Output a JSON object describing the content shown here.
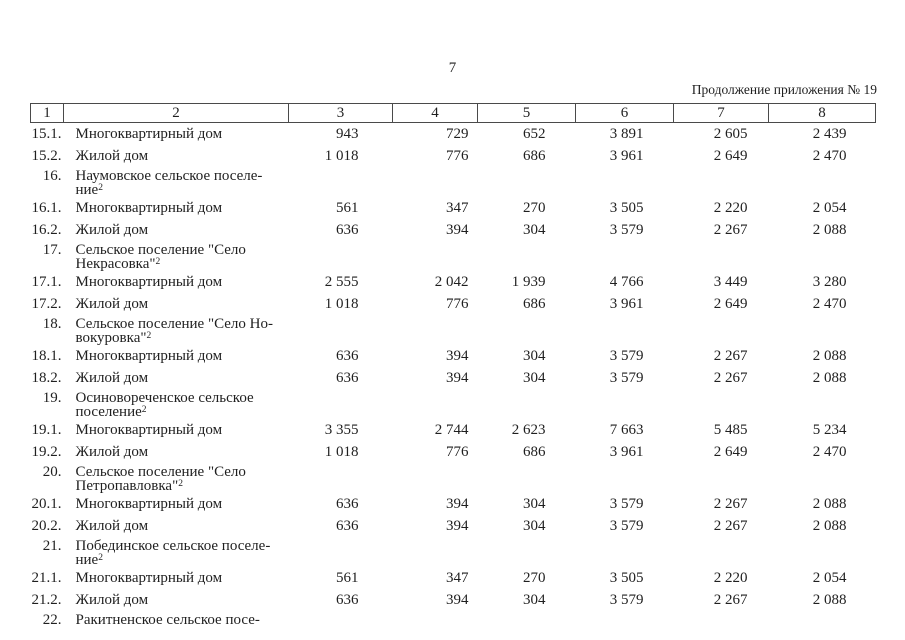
{
  "page": {
    "number": "7",
    "continuation": "Продолжение приложения № 19"
  },
  "table": {
    "header": [
      "1",
      "2",
      "3",
      "4",
      "5",
      "6",
      "7",
      "8"
    ],
    "rows": [
      {
        "type": "item",
        "num": "15.1.",
        "name": "Многоквартирный дом",
        "values": [
          "943",
          "729",
          "652",
          "3 891",
          "2 605",
          "2 439"
        ]
      },
      {
        "type": "item",
        "num": "15.2.",
        "name": "Жилой дом",
        "values": [
          "1 018",
          "776",
          "686",
          "3 961",
          "2 649",
          "2 470"
        ]
      },
      {
        "type": "section",
        "num": "16.",
        "line1": "Наумовское сельское поселе-",
        "line2": "ние",
        "sup": "2",
        "values": [
          "",
          "",
          "",
          "",
          "",
          ""
        ]
      },
      {
        "type": "item",
        "num": "16.1.",
        "name": "Многоквартирный дом",
        "values": [
          "561",
          "347",
          "270",
          "3 505",
          "2 220",
          "2 054"
        ]
      },
      {
        "type": "item",
        "num": "16.2.",
        "name": "Жилой дом",
        "values": [
          "636",
          "394",
          "304",
          "3 579",
          "2 267",
          "2 088"
        ]
      },
      {
        "type": "section",
        "num": "17.",
        "line1": "Сельское поселение \"Село",
        "line2": "Некрасовка\"",
        "sup": "2",
        "values": [
          "",
          "",
          "",
          "",
          "",
          ""
        ]
      },
      {
        "type": "item",
        "num": "17.1.",
        "name": "Многоквартирный дом",
        "values": [
          "2 555",
          "2 042",
          "1 939",
          "4 766",
          "3 449",
          "3 280"
        ]
      },
      {
        "type": "item",
        "num": "17.2.",
        "name": "Жилой дом",
        "values": [
          "1 018",
          "776",
          "686",
          "3 961",
          "2 649",
          "2 470"
        ]
      },
      {
        "type": "section",
        "num": "18.",
        "line1": "Сельское поселение \"Село Но-",
        "line2": "вокуровка\"",
        "sup": "2",
        "values": [
          "",
          "",
          "",
          "",
          "",
          ""
        ]
      },
      {
        "type": "item",
        "num": "18.1.",
        "name": "Многоквартирный дом",
        "values": [
          "636",
          "394",
          "304",
          "3 579",
          "2 267",
          "2 088"
        ]
      },
      {
        "type": "item",
        "num": "18.2.",
        "name": "Жилой дом",
        "values": [
          "636",
          "394",
          "304",
          "3 579",
          "2 267",
          "2 088"
        ]
      },
      {
        "type": "section",
        "num": "19.",
        "line1": "Осиновореченское сельское",
        "line2": "поселение",
        "sup": "2",
        "values": [
          "",
          "",
          "",
          "",
          "",
          ""
        ]
      },
      {
        "type": "item",
        "num": "19.1.",
        "name": "Многоквартирный дом",
        "values": [
          "3 355",
          "2 744",
          "2 623",
          "7 663",
          "5 485",
          "5 234"
        ]
      },
      {
        "type": "item",
        "num": "19.2.",
        "name": "Жилой дом",
        "values": [
          "1 018",
          "776",
          "686",
          "3 961",
          "2 649",
          "2 470"
        ]
      },
      {
        "type": "section",
        "num": "20.",
        "line1": "Сельское поселение \"Село",
        "line2": "Петропавловка\"",
        "sup": "2",
        "values": [
          "",
          "",
          "",
          "",
          "",
          ""
        ]
      },
      {
        "type": "item",
        "num": "20.1.",
        "name": "Многоквартирный дом",
        "values": [
          "636",
          "394",
          "304",
          "3 579",
          "2 267",
          "2 088"
        ]
      },
      {
        "type": "item",
        "num": "20.2.",
        "name": "Жилой дом",
        "values": [
          "636",
          "394",
          "304",
          "3 579",
          "2 267",
          "2 088"
        ]
      },
      {
        "type": "section",
        "num": "21.",
        "line1": "Побединское сельское поселе-",
        "line2": "ние",
        "sup": "2",
        "values": [
          "",
          "",
          "",
          "",
          "",
          ""
        ]
      },
      {
        "type": "item",
        "num": "21.1.",
        "name": "Многоквартирный дом",
        "values": [
          "561",
          "347",
          "270",
          "3 505",
          "2 220",
          "2 054"
        ]
      },
      {
        "type": "item",
        "num": "21.2.",
        "name": "Жилой дом",
        "values": [
          "636",
          "394",
          "304",
          "3 579",
          "2 267",
          "2 088"
        ]
      },
      {
        "type": "section",
        "num": "22.",
        "line1": "Ракитненское сельское посе-",
        "line2": "",
        "sup": "",
        "values": [
          "",
          "",
          "",
          "",
          "",
          ""
        ]
      }
    ]
  }
}
